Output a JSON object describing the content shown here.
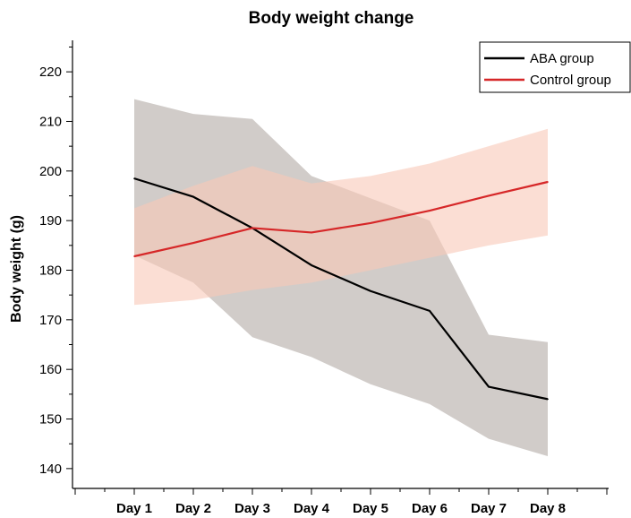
{
  "chart_data": {
    "type": "line",
    "title": "Body weight change",
    "xlabel": "",
    "ylabel": "Body weight (g)",
    "categories": [
      "Day 1",
      "Day 2",
      "Day 3",
      "Day 4",
      "Day 5",
      "Day 6",
      "Day 7",
      "Day 8"
    ],
    "ylim": [
      136,
      224
    ],
    "yticks": [
      140,
      150,
      160,
      170,
      180,
      190,
      200,
      210,
      220
    ],
    "legend_position": "top-right",
    "grid": false,
    "series": [
      {
        "name": "ABA group",
        "color": "#000000",
        "band_color": "#c9c3c0",
        "values": [
          198.5,
          194.8,
          188.5,
          181.0,
          175.8,
          171.8,
          156.5,
          154.0
        ],
        "upper": [
          214.5,
          211.5,
          210.5,
          199.0,
          194.5,
          190.0,
          167.0,
          165.5
        ],
        "lower": [
          183.0,
          177.5,
          166.5,
          162.5,
          157.0,
          153.0,
          146.0,
          142.5
        ]
      },
      {
        "name": "Control group",
        "color": "#d62728",
        "band_color": "#f9c8b8",
        "values": [
          182.8,
          185.5,
          188.5,
          187.6,
          189.5,
          192.0,
          195.0,
          197.8
        ],
        "upper": [
          192.5,
          197.0,
          201.0,
          197.5,
          199.0,
          201.5,
          205.0,
          208.5
        ],
        "lower": [
          173.0,
          174.0,
          176.0,
          177.5,
          180.0,
          182.5,
          185.0,
          187.0
        ]
      }
    ]
  }
}
